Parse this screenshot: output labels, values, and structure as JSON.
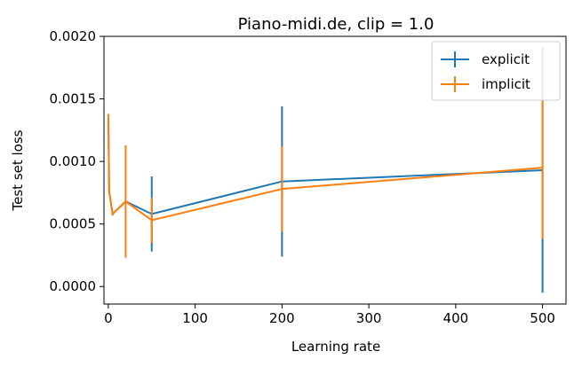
{
  "chart_data": {
    "type": "line",
    "title": "Piano-midi.de, clip = 1.0",
    "xlabel": "Learning rate",
    "ylabel": "Test set loss",
    "xlim": [
      -5,
      527
    ],
    "ylim": [
      -0.00014,
      0.002
    ],
    "xticks": [
      0,
      100,
      200,
      300,
      400,
      500
    ],
    "xtick_labels": [
      "0",
      "100",
      "200",
      "300",
      "400",
      "500"
    ],
    "yticks": [
      0.0,
      0.0005,
      0.001,
      0.0015,
      0.002
    ],
    "ytick_labels": [
      "0.0000",
      "0.0005",
      "0.0010",
      "0.0015",
      "0.0020"
    ],
    "grid": false,
    "legend_position": "top-right",
    "series": [
      {
        "name": "explicit",
        "color": "#1f77b4",
        "points": [
          {
            "x": 0.1,
            "y": 0.00136,
            "err": 1e-05
          },
          {
            "x": 1,
            "y": 0.00076,
            "err": 1e-05
          },
          {
            "x": 5,
            "y": 0.00058,
            "err": 1e-05
          },
          {
            "x": 20,
            "y": 0.00068,
            "err": 1e-05
          },
          {
            "x": 50,
            "y": 0.00058,
            "err": 0.0003
          },
          {
            "x": 200,
            "y": 0.00084,
            "err": 0.0006
          },
          {
            "x": 500,
            "y": 0.00093,
            "err": 0.00098
          }
        ]
      },
      {
        "name": "implicit",
        "color": "#ff7f0e",
        "points": [
          {
            "x": 0.1,
            "y": 0.00137,
            "err": 1e-05
          },
          {
            "x": 1,
            "y": 0.00076,
            "err": 1e-05
          },
          {
            "x": 5,
            "y": 0.00058,
            "err": 1e-05
          },
          {
            "x": 20,
            "y": 0.00068,
            "err": 0.00045
          },
          {
            "x": 50,
            "y": 0.00053,
            "err": 0.00018
          },
          {
            "x": 200,
            "y": 0.00078,
            "err": 0.00034
          },
          {
            "x": 500,
            "y": 0.00095,
            "err": 0.00057
          }
        ]
      }
    ]
  }
}
